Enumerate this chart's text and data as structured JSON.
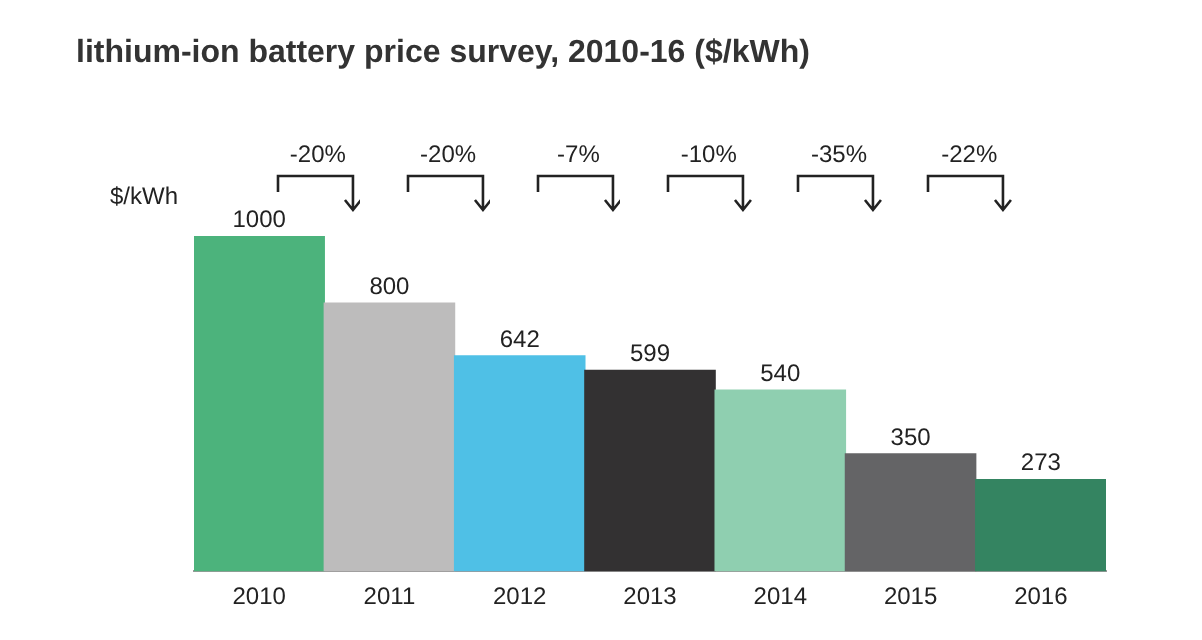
{
  "chart_data": {
    "type": "bar",
    "title": "lithium-ion battery price survey, 2010-16 ($/kWh)",
    "ylabel": "$/kWh",
    "categories": [
      "2010",
      "2011",
      "2012",
      "2013",
      "2014",
      "2015",
      "2016"
    ],
    "values": [
      1000,
      800,
      642,
      599,
      540,
      350,
      273
    ],
    "colors": [
      "#4cb37c",
      "#bdbcbc",
      "#4fc0e6",
      "#333132",
      "#8fcfb0",
      "#646466",
      "#348461"
    ],
    "data_labels": true,
    "grid": false,
    "legend": false,
    "annotations": [
      "-20%",
      "-20%",
      "-7%",
      "-10%",
      "-35%",
      "-22%"
    ]
  }
}
